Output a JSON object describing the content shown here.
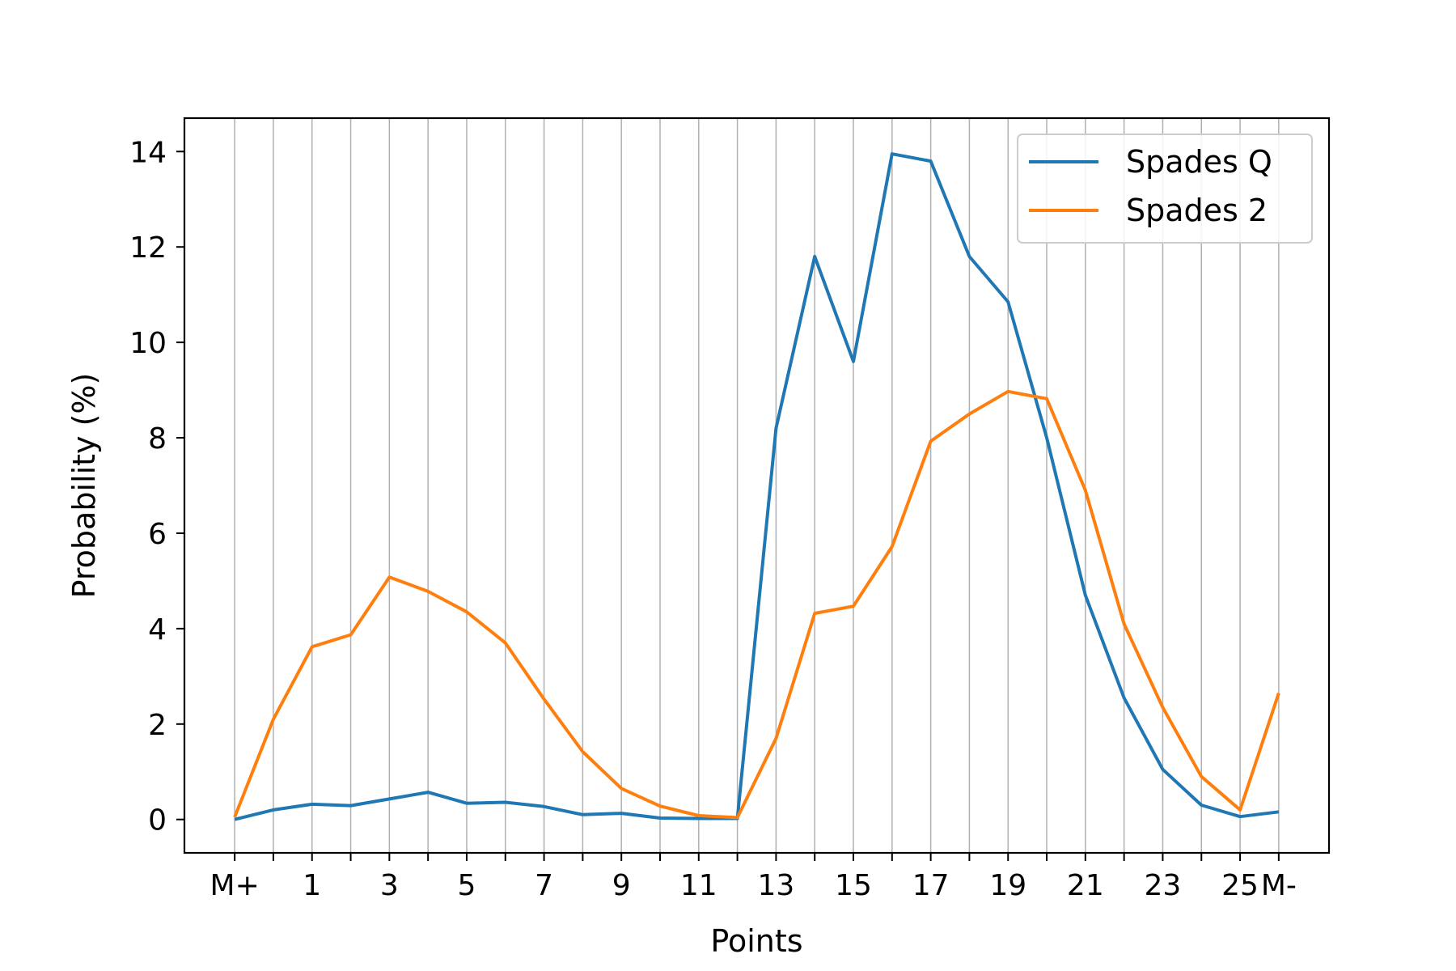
{
  "chart_data": {
    "type": "line",
    "x_tick_positions": [
      0,
      2,
      4,
      6,
      8,
      10,
      12,
      14,
      16,
      18,
      20,
      22,
      24,
      26,
      27
    ],
    "x_tick_labels": [
      "M+",
      "1",
      "3",
      "5",
      "7",
      "9",
      "11",
      "13",
      "15",
      "17",
      "19",
      "21",
      "23",
      "25",
      "M-"
    ],
    "xlim": [
      -1.3,
      28.3
    ],
    "ylim": [
      -0.7,
      14.7
    ],
    "y_ticks": [
      0,
      2,
      4,
      6,
      8,
      10,
      12,
      14
    ],
    "xlabel": "Points",
    "ylabel": "Probability (%)",
    "grid": "vertical",
    "legend_position": "top-right",
    "series": [
      {
        "name": "Spades Q",
        "color": "#1f77b4",
        "x": [
          0,
          1,
          2,
          3,
          4,
          5,
          6,
          7,
          8,
          9,
          10,
          11,
          12,
          13,
          14,
          15,
          16,
          17,
          18,
          19,
          20,
          21,
          22,
          23,
          24,
          25,
          26,
          27
        ],
        "values": [
          0.0,
          0.2,
          0.32,
          0.29,
          0.43,
          0.57,
          0.34,
          0.36,
          0.27,
          0.1,
          0.13,
          0.03,
          0.02,
          0.02,
          8.2,
          11.8,
          9.6,
          13.95,
          13.8,
          11.8,
          10.85,
          8.0,
          4.7,
          2.55,
          1.05,
          0.3,
          0.06,
          0.16
        ]
      },
      {
        "name": "Spades 2",
        "color": "#ff7f0e",
        "x": [
          0,
          1,
          2,
          3,
          4,
          5,
          6,
          7,
          8,
          9,
          10,
          11,
          12,
          13,
          14,
          15,
          16,
          17,
          18,
          19,
          20,
          21,
          22,
          23,
          24,
          25,
          26,
          27
        ],
        "values": [
          0.05,
          2.1,
          3.62,
          3.87,
          5.08,
          4.78,
          4.35,
          3.7,
          2.52,
          1.42,
          0.65,
          0.28,
          0.08,
          0.04,
          1.7,
          4.32,
          4.47,
          5.72,
          7.93,
          8.5,
          8.97,
          8.82,
          6.9,
          4.1,
          2.35,
          0.9,
          0.2,
          2.65
        ]
      }
    ]
  }
}
